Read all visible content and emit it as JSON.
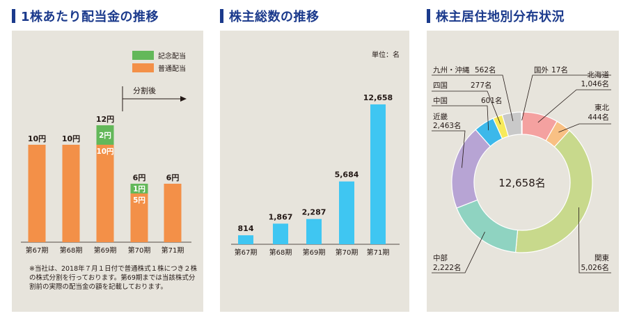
{
  "headings": {
    "dividend": "1株あたり配当金の推移",
    "shares": "株主総数の推移",
    "distribution": "株主居住地別分布状況"
  },
  "chart_data": [
    {
      "type": "bar",
      "title": "1株あたり配当金の推移",
      "categories": [
        "第67期",
        "第68期",
        "第69期",
        "第70期",
        "第71期"
      ],
      "series": [
        {
          "name": "普通配当",
          "values": [
            10,
            10,
            10,
            5,
            6
          ],
          "color": "#f39048"
        },
        {
          "name": "記念配当",
          "values": [
            0,
            0,
            2,
            1,
            0
          ],
          "color": "#63b85a"
        }
      ],
      "total_labels": [
        "10円",
        "10円",
        "12円",
        "6円",
        "6円"
      ],
      "segment_labels": {
        "普通配当": [
          "",
          "",
          "10円",
          "5円",
          ""
        ],
        "記念配当": [
          "",
          "",
          "2円",
          "1円",
          ""
        ]
      },
      "ylim": [
        0,
        12.5
      ],
      "legend": "top-right",
      "annotation": "分割後",
      "note": "※当社は、2018年７月１日付で普通株式１株につき２株の株式分割を行っております。第69期までは当該株式分割前の実際の配当金の額を記載しております。"
    },
    {
      "type": "bar",
      "title": "株主総数の推移",
      "unit_label": "単位：名",
      "categories": [
        "第67期",
        "第68期",
        "第69期",
        "第70期",
        "第71期"
      ],
      "values": [
        814,
        1867,
        2287,
        5684,
        12658
      ],
      "value_labels": [
        "814",
        "1,867",
        "2,287",
        "5,684",
        "12,658"
      ],
      "color": "#3fc6f2",
      "ylim": [
        0,
        12658
      ]
    },
    {
      "type": "pie",
      "title": "株主居住地別分布状況",
      "center_label": "12,658名",
      "slices": [
        {
          "name": "北海道",
          "value": 1046,
          "value_label": "1,046名",
          "color": "#f4a1a0"
        },
        {
          "name": "東北",
          "value": 444,
          "value_label": "444名",
          "color": "#f8c084"
        },
        {
          "name": "関東",
          "value": 5026,
          "value_label": "5,026名",
          "color": "#c8d98c"
        },
        {
          "name": "中部",
          "value": 2222,
          "value_label": "2,222名",
          "color": "#8fd3c1"
        },
        {
          "name": "近畿",
          "value": 2463,
          "value_label": "2,463名",
          "color": "#b7a4d4"
        },
        {
          "name": "中国",
          "value": 601,
          "value_label": "601名",
          "color": "#3cb8ea"
        },
        {
          "name": "四国",
          "value": 277,
          "value_label": "277名",
          "color": "#f7ea5a"
        },
        {
          "name": "九州・沖縄",
          "value": 562,
          "value_label": "562名",
          "color": "#c9c9c9"
        },
        {
          "name": "国外",
          "value": 17,
          "value_label": "17名",
          "color": "#8fcfd6"
        }
      ]
    }
  ]
}
